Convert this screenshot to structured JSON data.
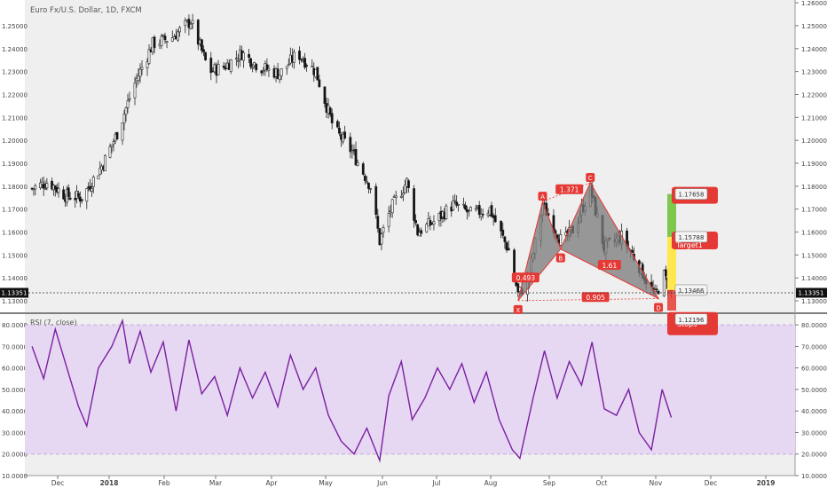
{
  "chart_data": [
    {
      "type": "candlestick",
      "title": "Euro Fx/U.S. Dollar, 1D, FXCM",
      "ylim": [
        1.125,
        1.2612
      ],
      "y_ticks": [
        "1.13000",
        "1.14000",
        "1.15000",
        "1.16000",
        "1.17000",
        "1.18000",
        "1.19000",
        "1.20000",
        "1.21000",
        "1.22000",
        "1.23000",
        "1.24000",
        "1.25000",
        "1.26000"
      ],
      "x_ticks": [
        "Dec",
        "2018",
        "Feb",
        "Mar",
        "Apr",
        "May",
        "Jun",
        "Jul",
        "Aug",
        "Sep",
        "Oct",
        "Nov",
        "Dec",
        "2019"
      ],
      "last_price": "1.13351",
      "close_path": [
        [
          "2017-11-15",
          1.179
        ],
        [
          "2017-11-25",
          1.182
        ],
        [
          "2017-12-05",
          1.176
        ],
        [
          "2017-12-15",
          1.175
        ],
        [
          "2017-12-28",
          1.19
        ],
        [
          "2018-01-05",
          1.203
        ],
        [
          "2018-01-15",
          1.225
        ],
        [
          "2018-01-25",
          1.242
        ],
        [
          "2018-02-05",
          1.245
        ],
        [
          "2018-02-15",
          1.252
        ],
        [
          "2018-02-25",
          1.23
        ],
        [
          "2018-03-05",
          1.232
        ],
        [
          "2018-03-15",
          1.238
        ],
        [
          "2018-03-25",
          1.232
        ],
        [
          "2018-04-05",
          1.229
        ],
        [
          "2018-04-15",
          1.238
        ],
        [
          "2018-04-25",
          1.23
        ],
        [
          "2018-05-05",
          1.205
        ],
        [
          "2018-05-15",
          1.195
        ],
        [
          "2018-05-25",
          1.18
        ],
        [
          "2018-05-30",
          1.156
        ],
        [
          "2018-06-05",
          1.17
        ],
        [
          "2018-06-14",
          1.182
        ],
        [
          "2018-06-20",
          1.16
        ],
        [
          "2018-06-30",
          1.165
        ],
        [
          "2018-07-10",
          1.172
        ],
        [
          "2018-07-20",
          1.168
        ],
        [
          "2018-07-31",
          1.17
        ],
        [
          "2018-08-10",
          1.152
        ],
        [
          "2018-08-15",
          1.133
        ],
        [
          "2018-08-20",
          1.138
        ],
        [
          "2018-08-28",
          1.172
        ],
        [
          "2018-09-08",
          1.155
        ],
        [
          "2018-09-15",
          1.162
        ],
        [
          "2018-09-24",
          1.179
        ],
        [
          "2018-10-02",
          1.153
        ],
        [
          "2018-10-12",
          1.158
        ],
        [
          "2018-10-20",
          1.148
        ],
        [
          "2018-10-31",
          1.132
        ],
        [
          "2018-11-05",
          1.141
        ],
        [
          "2018-11-09",
          1.134
        ]
      ]
    },
    {
      "type": "area",
      "title": "RSI (7, close)",
      "ylim": [
        10,
        85
      ],
      "y_ticks": [
        "10.0000",
        "20.0000",
        "30.0000",
        "40.0000",
        "50.0000",
        "60.0000",
        "70.0000",
        "80.0000"
      ],
      "band": [
        20,
        80
      ],
      "color": "#7b1fa2",
      "series": [
        [
          "2017-11-15",
          70
        ],
        [
          "2017-11-22",
          55
        ],
        [
          "2017-11-29",
          78
        ],
        [
          "2017-12-06",
          60
        ],
        [
          "2017-12-13",
          42
        ],
        [
          "2017-12-18",
          33
        ],
        [
          "2017-12-25",
          60
        ],
        [
          "2018-01-02",
          70
        ],
        [
          "2018-01-08",
          82
        ],
        [
          "2018-01-12",
          62
        ],
        [
          "2018-01-18",
          77
        ],
        [
          "2018-01-24",
          58
        ],
        [
          "2018-01-31",
          72
        ],
        [
          "2018-02-07",
          40
        ],
        [
          "2018-02-14",
          73
        ],
        [
          "2018-02-21",
          48
        ],
        [
          "2018-02-28",
          56
        ],
        [
          "2018-03-07",
          38
        ],
        [
          "2018-03-14",
          60
        ],
        [
          "2018-03-21",
          46
        ],
        [
          "2018-03-28",
          58
        ],
        [
          "2018-04-04",
          42
        ],
        [
          "2018-04-11",
          66
        ],
        [
          "2018-04-18",
          50
        ],
        [
          "2018-04-25",
          60
        ],
        [
          "2018-05-02",
          38
        ],
        [
          "2018-05-09",
          26
        ],
        [
          "2018-05-16",
          20
        ],
        [
          "2018-05-23",
          32
        ],
        [
          "2018-05-30",
          17
        ],
        [
          "2018-06-04",
          47
        ],
        [
          "2018-06-11",
          63
        ],
        [
          "2018-06-17",
          36
        ],
        [
          "2018-06-24",
          46
        ],
        [
          "2018-07-01",
          60
        ],
        [
          "2018-07-08",
          50
        ],
        [
          "2018-07-15",
          62
        ],
        [
          "2018-07-22",
          44
        ],
        [
          "2018-07-29",
          58
        ],
        [
          "2018-08-05",
          36
        ],
        [
          "2018-08-12",
          22
        ],
        [
          "2018-08-16",
          18
        ],
        [
          "2018-08-23",
          46
        ],
        [
          "2018-08-29",
          68
        ],
        [
          "2018-09-05",
          46
        ],
        [
          "2018-09-12",
          63
        ],
        [
          "2018-09-19",
          52
        ],
        [
          "2018-09-25",
          72
        ],
        [
          "2018-10-02",
          41
        ],
        [
          "2018-10-09",
          38
        ],
        [
          "2018-10-16",
          50
        ],
        [
          "2018-10-22",
          30
        ],
        [
          "2018-10-29",
          22
        ],
        [
          "2018-11-04",
          50
        ],
        [
          "2018-11-09",
          37
        ]
      ]
    }
  ],
  "pattern": {
    "points": [
      {
        "label": "X",
        "date": "2018-08-15",
        "price": 1.1301
      },
      {
        "label": "A",
        "date": "2018-08-28",
        "price": 1.1733
      },
      {
        "label": "B",
        "date": "2018-09-07",
        "price": 1.1526
      },
      {
        "label": "C",
        "date": "2018-09-24",
        "price": 1.1815
      },
      {
        "label": "D",
        "date": "2018-11-02",
        "price": 1.131
      }
    ],
    "ratios": [
      {
        "text": "1.371",
        "date": "2018-09-12",
        "price": 1.1785
      },
      {
        "text": "0.493",
        "date": "2018-08-19",
        "price": 1.14
      },
      {
        "text": "1.61",
        "date": "2018-10-05",
        "price": 1.1455
      },
      {
        "text": "0.905",
        "date": "2018-09-27",
        "price": 1.1315
      }
    ],
    "fill_color": "#808080",
    "line_color": "#e53935"
  },
  "targets": [
    {
      "text": "1.17658",
      "price": 1.1766
    },
    {
      "text": "1.15788",
      "price": 1.1579
    },
    {
      "text": "1.13466",
      "price": 1.1347
    },
    {
      "text": "1.12196",
      "price": 1.122
    }
  ],
  "target_label": "Target1",
  "stop_label": "Stops",
  "colors": {
    "up": "#4a4a4a",
    "down": "#111111",
    "accent": "#e53935",
    "stop_bg": "#e53935",
    "profit_bg": "#7ec850",
    "yellow": "#ffe74d"
  }
}
